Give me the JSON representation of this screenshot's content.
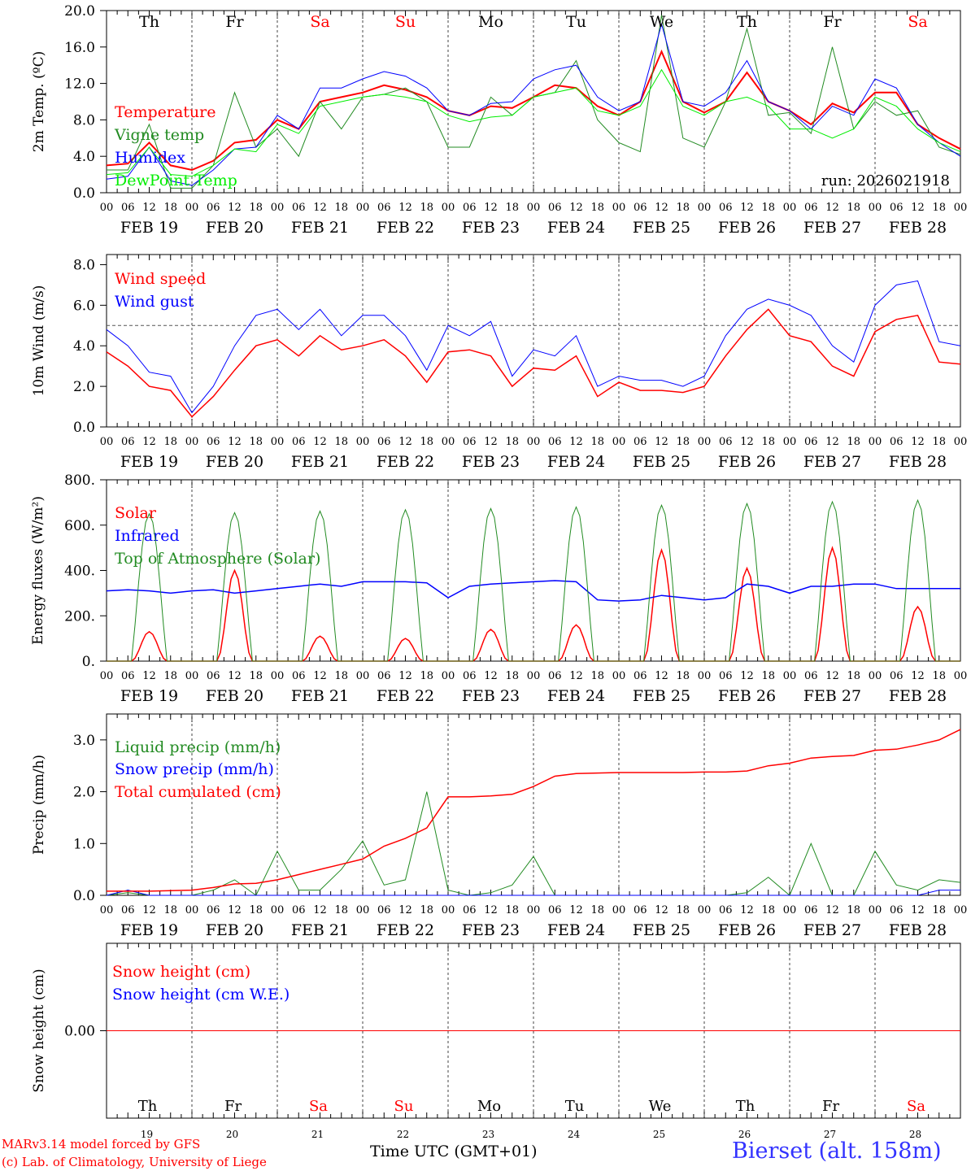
{
  "days": [
    "Th",
    "Fr",
    "Sa",
    "Su",
    "Mo",
    "Tu",
    "We",
    "Th",
    "Fr",
    "Sa"
  ],
  "weekend_days": [
    2,
    3,
    9
  ],
  "dates": [
    "FEB 19",
    "FEB 20",
    "FEB 21",
    "FEB 22",
    "FEB 23",
    "FEB 24",
    "FEB 25",
    "FEB 26",
    "FEB 27",
    "FEB 28"
  ],
  "day_numbers": [
    "19",
    "20",
    "21",
    "22",
    "23",
    "24",
    "25",
    "26",
    "27",
    "28"
  ],
  "hour_ticks": [
    "00",
    "06",
    "12",
    "18"
  ],
  "run_label": "run: 2026021918",
  "footer": {
    "model": "MARv3.14 model forced by GFS",
    "copyright": "(c) Lab. of Climatology, University of Liege",
    "xlabel": "Time UTC (GMT+01)",
    "station": "Bierset (alt. 158m)"
  },
  "colors": {
    "red": "#ff0000",
    "green": "#228b22",
    "blue": "#0000ff",
    "lime": "#00ee00"
  },
  "chart_data": [
    {
      "type": "line",
      "ylabel": "2m Temp. (ºC)",
      "ylim": [
        0,
        20
      ],
      "yticks": [
        "0.0",
        "4.0",
        "8.0",
        "12.0",
        "16.0",
        "20.0"
      ],
      "x_hours_step": 6,
      "series": [
        {
          "name": "Temperature",
          "color": "#ff0000",
          "width": 2,
          "values": [
            3.0,
            3.2,
            5.5,
            3.0,
            2.5,
            3.5,
            5.5,
            5.8,
            8.0,
            7.0,
            10.0,
            10.5,
            11.0,
            11.8,
            11.3,
            10.5,
            9.0,
            8.5,
            9.5,
            9.3,
            10.5,
            11.8,
            11.5,
            9.5,
            8.5,
            10.0,
            15.5,
            10.0,
            8.8,
            10.0,
            13.2,
            10.0,
            9.0,
            7.5,
            9.8,
            8.8,
            11.0,
            11.0,
            7.5,
            6.0,
            4.8
          ]
        },
        {
          "name": "Vigne temp",
          "color": "#228b22",
          "width": 1,
          "values": [
            2.5,
            2.5,
            7.5,
            0.5,
            0.5,
            3.0,
            11.0,
            5.0,
            7.0,
            4.0,
            10.0,
            7.0,
            10.5,
            10.8,
            11.5,
            10.0,
            5.0,
            5.0,
            10.5,
            8.5,
            10.5,
            11.0,
            14.5,
            8.0,
            5.5,
            4.5,
            19.5,
            6.0,
            5.0,
            10.0,
            18.0,
            8.5,
            8.8,
            6.5,
            16.0,
            7.0,
            10.0,
            8.5,
            9.0,
            5.0,
            4.2
          ]
        },
        {
          "name": "Humidex",
          "color": "#0000ff",
          "width": 1,
          "values": [
            1.5,
            1.8,
            5.0,
            1.3,
            0.8,
            2.5,
            4.8,
            5.0,
            8.5,
            7.0,
            11.5,
            11.5,
            12.5,
            13.3,
            12.8,
            11.5,
            9.0,
            8.5,
            9.8,
            10.0,
            12.5,
            13.5,
            14.0,
            10.5,
            9.0,
            10.0,
            18.5,
            10.0,
            9.5,
            11.0,
            14.5,
            10.0,
            9.0,
            7.0,
            9.5,
            8.5,
            12.5,
            11.5,
            7.5,
            5.5,
            4.0
          ]
        },
        {
          "name": "DewPoint Temp",
          "color": "#00ee00",
          "width": 1,
          "values": [
            2.0,
            2.2,
            5.0,
            2.0,
            1.8,
            3.0,
            4.8,
            4.5,
            7.5,
            6.5,
            9.5,
            10.0,
            10.5,
            10.8,
            10.5,
            10.0,
            8.5,
            7.8,
            8.3,
            8.5,
            10.5,
            11.0,
            11.5,
            9.0,
            8.5,
            9.5,
            13.5,
            9.5,
            8.5,
            10.0,
            10.5,
            9.5,
            7.0,
            7.0,
            6.0,
            7.0,
            10.5,
            9.5,
            7.0,
            5.5,
            4.5
          ]
        }
      ]
    },
    {
      "type": "line",
      "ylabel": "10m Wind (m/s)",
      "ylim": [
        0,
        8.5
      ],
      "yticks": [
        "0.0",
        "2.0",
        "4.0",
        "6.0",
        "8.0"
      ],
      "x_hours_step": 6,
      "reference_line": 5.0,
      "series": [
        {
          "name": "Wind speed",
          "color": "#ff0000",
          "width": 1.5,
          "values": [
            3.7,
            3.0,
            2.0,
            1.8,
            0.5,
            1.5,
            2.8,
            4.0,
            4.3,
            3.5,
            4.5,
            3.8,
            4.0,
            4.3,
            3.5,
            2.2,
            3.7,
            3.8,
            3.5,
            2.0,
            2.9,
            2.8,
            3.5,
            1.5,
            2.2,
            1.8,
            1.8,
            1.7,
            2.0,
            3.5,
            4.8,
            5.8,
            4.5,
            4.2,
            3.0,
            2.5,
            4.7,
            5.3,
            5.5,
            3.2,
            3.1
          ]
        },
        {
          "name": "Wind gust",
          "color": "#0000ff",
          "width": 1,
          "values": [
            4.8,
            4.0,
            2.7,
            2.5,
            0.7,
            2.0,
            4.0,
            5.5,
            5.8,
            4.8,
            5.8,
            4.5,
            5.5,
            5.5,
            4.5,
            2.8,
            5.0,
            4.5,
            5.2,
            2.5,
            3.8,
            3.5,
            4.5,
            2.0,
            2.5,
            2.3,
            2.3,
            2.0,
            2.5,
            4.5,
            5.8,
            6.3,
            6.0,
            5.5,
            4.0,
            3.2,
            6.0,
            7.0,
            7.2,
            4.2,
            4.0
          ]
        }
      ]
    },
    {
      "type": "line",
      "ylabel": "Energy fluxes (W/m²)",
      "ylim": [
        0,
        800
      ],
      "yticks": [
        "0.",
        "200.",
        "400.",
        "600.",
        "800."
      ],
      "series": [
        {
          "name": "Solar",
          "color": "#ff0000",
          "width": 1.5,
          "daily_peaks": [
            130,
            400,
            110,
            100,
            140,
            160,
            490,
            410,
            500,
            240
          ]
        },
        {
          "name": "Infrared",
          "color": "#0000ff",
          "width": 1.5,
          "x_hours_step": 6,
          "values": [
            310,
            315,
            310,
            300,
            310,
            315,
            300,
            310,
            320,
            330,
            340,
            330,
            350,
            350,
            350,
            345,
            280,
            330,
            340,
            345,
            350,
            355,
            350,
            270,
            265,
            270,
            290,
            280,
            270,
            280,
            340,
            330,
            300,
            330,
            330,
            340,
            340,
            320,
            320,
            320,
            320
          ]
        },
        {
          "name": "Top of Atmosphere (Solar)",
          "color": "#228b22",
          "width": 1,
          "daily_peaks": [
            650,
            655,
            662,
            668,
            673,
            680,
            688,
            695,
            703,
            710
          ]
        }
      ]
    },
    {
      "type": "line",
      "ylabel": "Precip (mm/h)",
      "ylim": [
        0,
        3.5
      ],
      "yticks": [
        "0.0",
        "1.0",
        "2.0",
        "3.0"
      ],
      "x_hours_step": 6,
      "series": [
        {
          "name": "Liquid precip (mm/h)",
          "color": "#228b22",
          "width": 1,
          "values": [
            0,
            0.05,
            0,
            0,
            0,
            0.1,
            0.3,
            0,
            0.85,
            0.1,
            0.1,
            0.5,
            1.05,
            0.2,
            0.3,
            2.0,
            0.1,
            0,
            0.05,
            0.2,
            0.75,
            0,
            0,
            0,
            0,
            0,
            0,
            0,
            0,
            0,
            0.05,
            0.35,
            0,
            1.0,
            0,
            0,
            0.85,
            0.2,
            0.1,
            0.3,
            0.25
          ]
        },
        {
          "name": "Snow precip (mm/h)",
          "color": "#0000ff",
          "width": 1,
          "values": [
            0,
            0.1,
            0,
            0,
            0,
            0,
            0,
            0,
            0,
            0,
            0,
            0,
            0,
            0,
            0,
            0,
            0,
            0,
            0,
            0,
            0,
            0,
            0,
            0,
            0,
            0,
            0,
            0,
            0,
            0,
            0,
            0,
            0,
            0,
            0,
            0,
            0,
            0,
            0,
            0.1,
            0.1
          ]
        },
        {
          "name": "Total cumulated (cm)",
          "color": "#ff0000",
          "width": 1.5,
          "values": [
            0.08,
            0.08,
            0.08,
            0.09,
            0.1,
            0.15,
            0.22,
            0.23,
            0.3,
            0.4,
            0.5,
            0.6,
            0.7,
            0.95,
            1.1,
            1.3,
            1.9,
            1.9,
            1.92,
            1.95,
            2.1,
            2.3,
            2.35,
            2.36,
            2.37,
            2.37,
            2.37,
            2.37,
            2.38,
            2.38,
            2.4,
            2.5,
            2.55,
            2.65,
            2.68,
            2.7,
            2.8,
            2.82,
            2.9,
            3.0,
            3.2
          ]
        }
      ]
    },
    {
      "type": "line",
      "ylabel": "Snow height (cm)",
      "ylim": [
        -1,
        1
      ],
      "yticks": [
        "0.00"
      ],
      "x_hours_step": 240,
      "series": [
        {
          "name": "Snow height (cm)",
          "color": "#ff0000",
          "width": 1,
          "values": [
            0,
            0
          ]
        },
        {
          "name": "Snow height (cm W.E.)",
          "color": "#0000ff",
          "width": 1,
          "values": null
        }
      ]
    }
  ]
}
